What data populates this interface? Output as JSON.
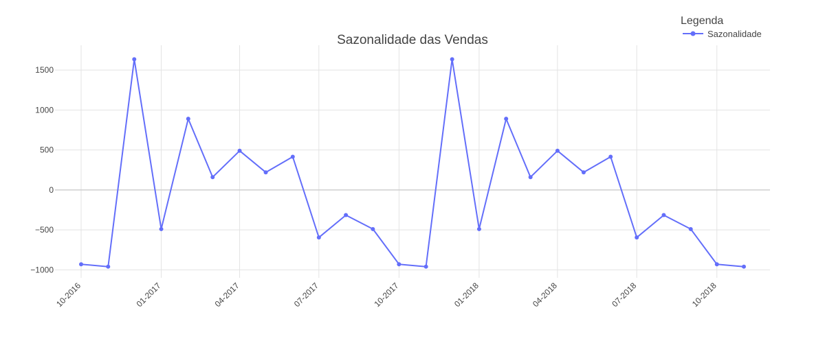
{
  "chart_data": {
    "type": "line",
    "title": "Sazonalidade das Vendas",
    "xlabel": "",
    "ylabel": "",
    "legend": {
      "title": "Legenda",
      "placement": "top-right"
    },
    "x": [
      "2016-10-01",
      "2016-11-01",
      "2016-12-01",
      "2017-01-01",
      "2017-02-01",
      "2017-03-01",
      "2017-04-01",
      "2017-05-01",
      "2017-06-01",
      "2017-07-01",
      "2017-08-01",
      "2017-09-01",
      "2017-10-01",
      "2017-11-01",
      "2017-12-01",
      "2018-01-01",
      "2018-02-01",
      "2018-03-01",
      "2018-04-01",
      "2018-05-01",
      "2018-06-01",
      "2018-07-01",
      "2018-08-01",
      "2018-09-01",
      "2018-10-01",
      "2018-11-01"
    ],
    "series": [
      {
        "name": "Sazonalidade",
        "color": "#636efa",
        "values": [
          -930,
          -960,
          1635,
          -490,
          890,
          160,
          490,
          220,
          415,
          -595,
          -315,
          -490,
          -930,
          -960,
          1635,
          -490,
          890,
          160,
          490,
          220,
          415,
          -595,
          -315,
          -490,
          -930,
          -960
        ]
      }
    ],
    "xticks": [
      {
        "date": "2016-10-01",
        "label": "10-2016"
      },
      {
        "date": "2017-01-01",
        "label": "01-2017"
      },
      {
        "date": "2017-04-01",
        "label": "04-2017"
      },
      {
        "date": "2017-07-01",
        "label": "07-2017"
      },
      {
        "date": "2017-10-01",
        "label": "10-2017"
      },
      {
        "date": "2018-01-01",
        "label": "01-2018"
      },
      {
        "date": "2018-04-01",
        "label": "04-2018"
      },
      {
        "date": "2018-07-01",
        "label": "07-2018"
      },
      {
        "date": "2018-10-01",
        "label": "10-2018"
      }
    ],
    "yticks": [
      {
        "value": 1500,
        "label": "1500"
      },
      {
        "value": 1000,
        "label": "1000"
      },
      {
        "value": 500,
        "label": "500"
      },
      {
        "value": 0,
        "label": "0"
      },
      {
        "value": -500,
        "label": "−500"
      },
      {
        "value": -1000,
        "label": "−1000"
      }
    ],
    "ylim": [
      -1100,
      1810
    ],
    "xlim": [
      "2016-09-01",
      "2018-12-01"
    ],
    "grid": true
  }
}
